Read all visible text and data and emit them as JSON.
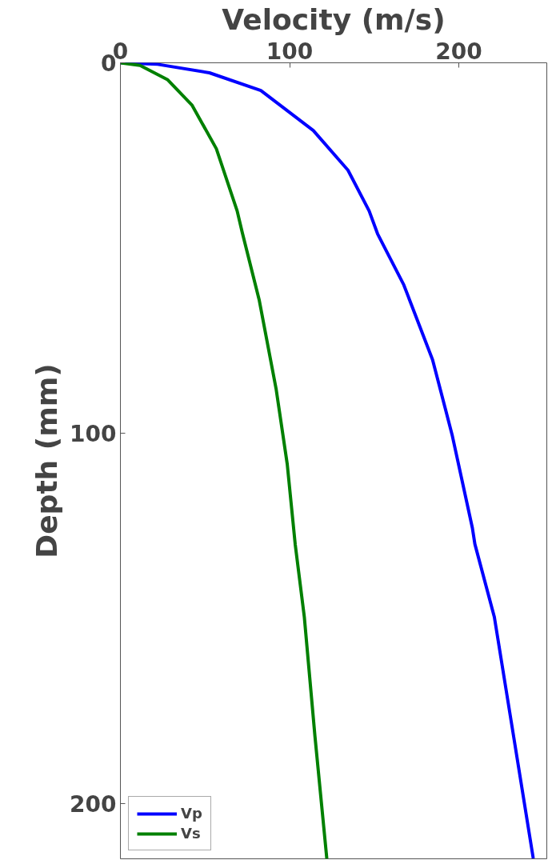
{
  "chart_data": {
    "type": "line",
    "xlabel": "Velocity (m/s)",
    "ylabel": "Depth (mm)",
    "xlim": [
      0,
      252
    ],
    "ylim": [
      215,
      0
    ],
    "xticks": [
      0,
      100,
      200
    ],
    "yticks": [
      0,
      100,
      200
    ],
    "grid": false,
    "legend": "bottom left",
    "marker": "none",
    "line_style": "solid",
    "series": [
      {
        "name": "Vp",
        "color": "#0000ff",
        "x": [
          0,
          22,
          52.6,
          83,
          114,
          134.5,
          147,
          152,
          167.5,
          184.5,
          196,
          208,
          209.5,
          221,
          231,
          244
        ],
        "values": [
          0,
          0.4,
          2.7,
          7.5,
          18.3,
          29,
          40,
          46.2,
          60,
          80.2,
          100.4,
          125.6,
          130,
          149.7,
          178,
          214.9
        ]
      },
      {
        "name": "Vs",
        "color": "#008000",
        "x": [
          0,
          11.6,
          28,
          42.4,
          56.7,
          69,
          72,
          82,
          92,
          98.6,
          103.3,
          108.7,
          115,
          122
        ],
        "values": [
          0,
          0.7,
          4.6,
          11.5,
          23.2,
          40,
          45.8,
          64,
          88,
          108.4,
          130,
          149.7,
          182,
          215
        ]
      }
    ]
  }
}
